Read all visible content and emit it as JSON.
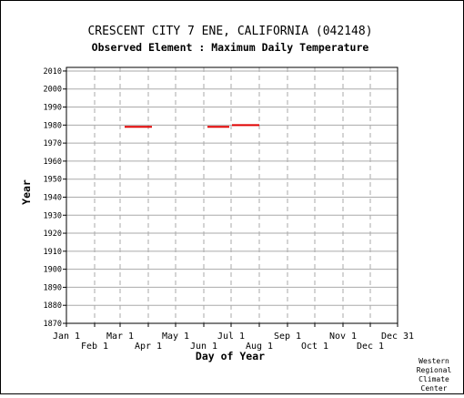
{
  "title": "CRESCENT CITY 7 ENE, CALIFORNIA   (042148)",
  "subtitle": "Observed Element : Maximum Daily Temperature",
  "credit": [
    "Western",
    "Regional",
    "Climate",
    "Center"
  ],
  "colors": {
    "series": "#e00000",
    "grid": "#aaaaaa",
    "axis": "#000000"
  },
  "chart_data": {
    "type": "timeline",
    "xlabel": "Day of Year",
    "ylabel": "Year",
    "xlim": [
      1,
      365
    ],
    "ylim": [
      1870,
      2012
    ],
    "x_ticks_top_row": [
      {
        "label": "Jan 1",
        "day": 1
      },
      {
        "label": "Mar 1",
        "day": 60
      },
      {
        "label": "May 1",
        "day": 121
      },
      {
        "label": "Jul 1",
        "day": 182
      },
      {
        "label": "Sep 1",
        "day": 244
      },
      {
        "label": "Nov 1",
        "day": 305
      },
      {
        "label": "Dec 31",
        "day": 365
      }
    ],
    "x_ticks_bottom_row": [
      {
        "label": "Feb 1",
        "day": 32
      },
      {
        "label": "Apr 1",
        "day": 91
      },
      {
        "label": "Jun 1",
        "day": 152
      },
      {
        "label": "Aug 1",
        "day": 213
      },
      {
        "label": "Oct 1",
        "day": 274
      },
      {
        "label": "Dec 1",
        "day": 335
      }
    ],
    "y_ticks": [
      1870,
      1880,
      1890,
      1900,
      1910,
      1920,
      1930,
      1940,
      1950,
      1960,
      1970,
      1980,
      1990,
      2000,
      2010
    ],
    "segments": [
      {
        "year": 1979,
        "start_day": 65,
        "end_day": 95
      },
      {
        "year": 1979,
        "start_day": 156,
        "end_day": 180
      },
      {
        "year": 1980,
        "start_day": 183,
        "end_day": 213
      }
    ],
    "grid": true
  }
}
